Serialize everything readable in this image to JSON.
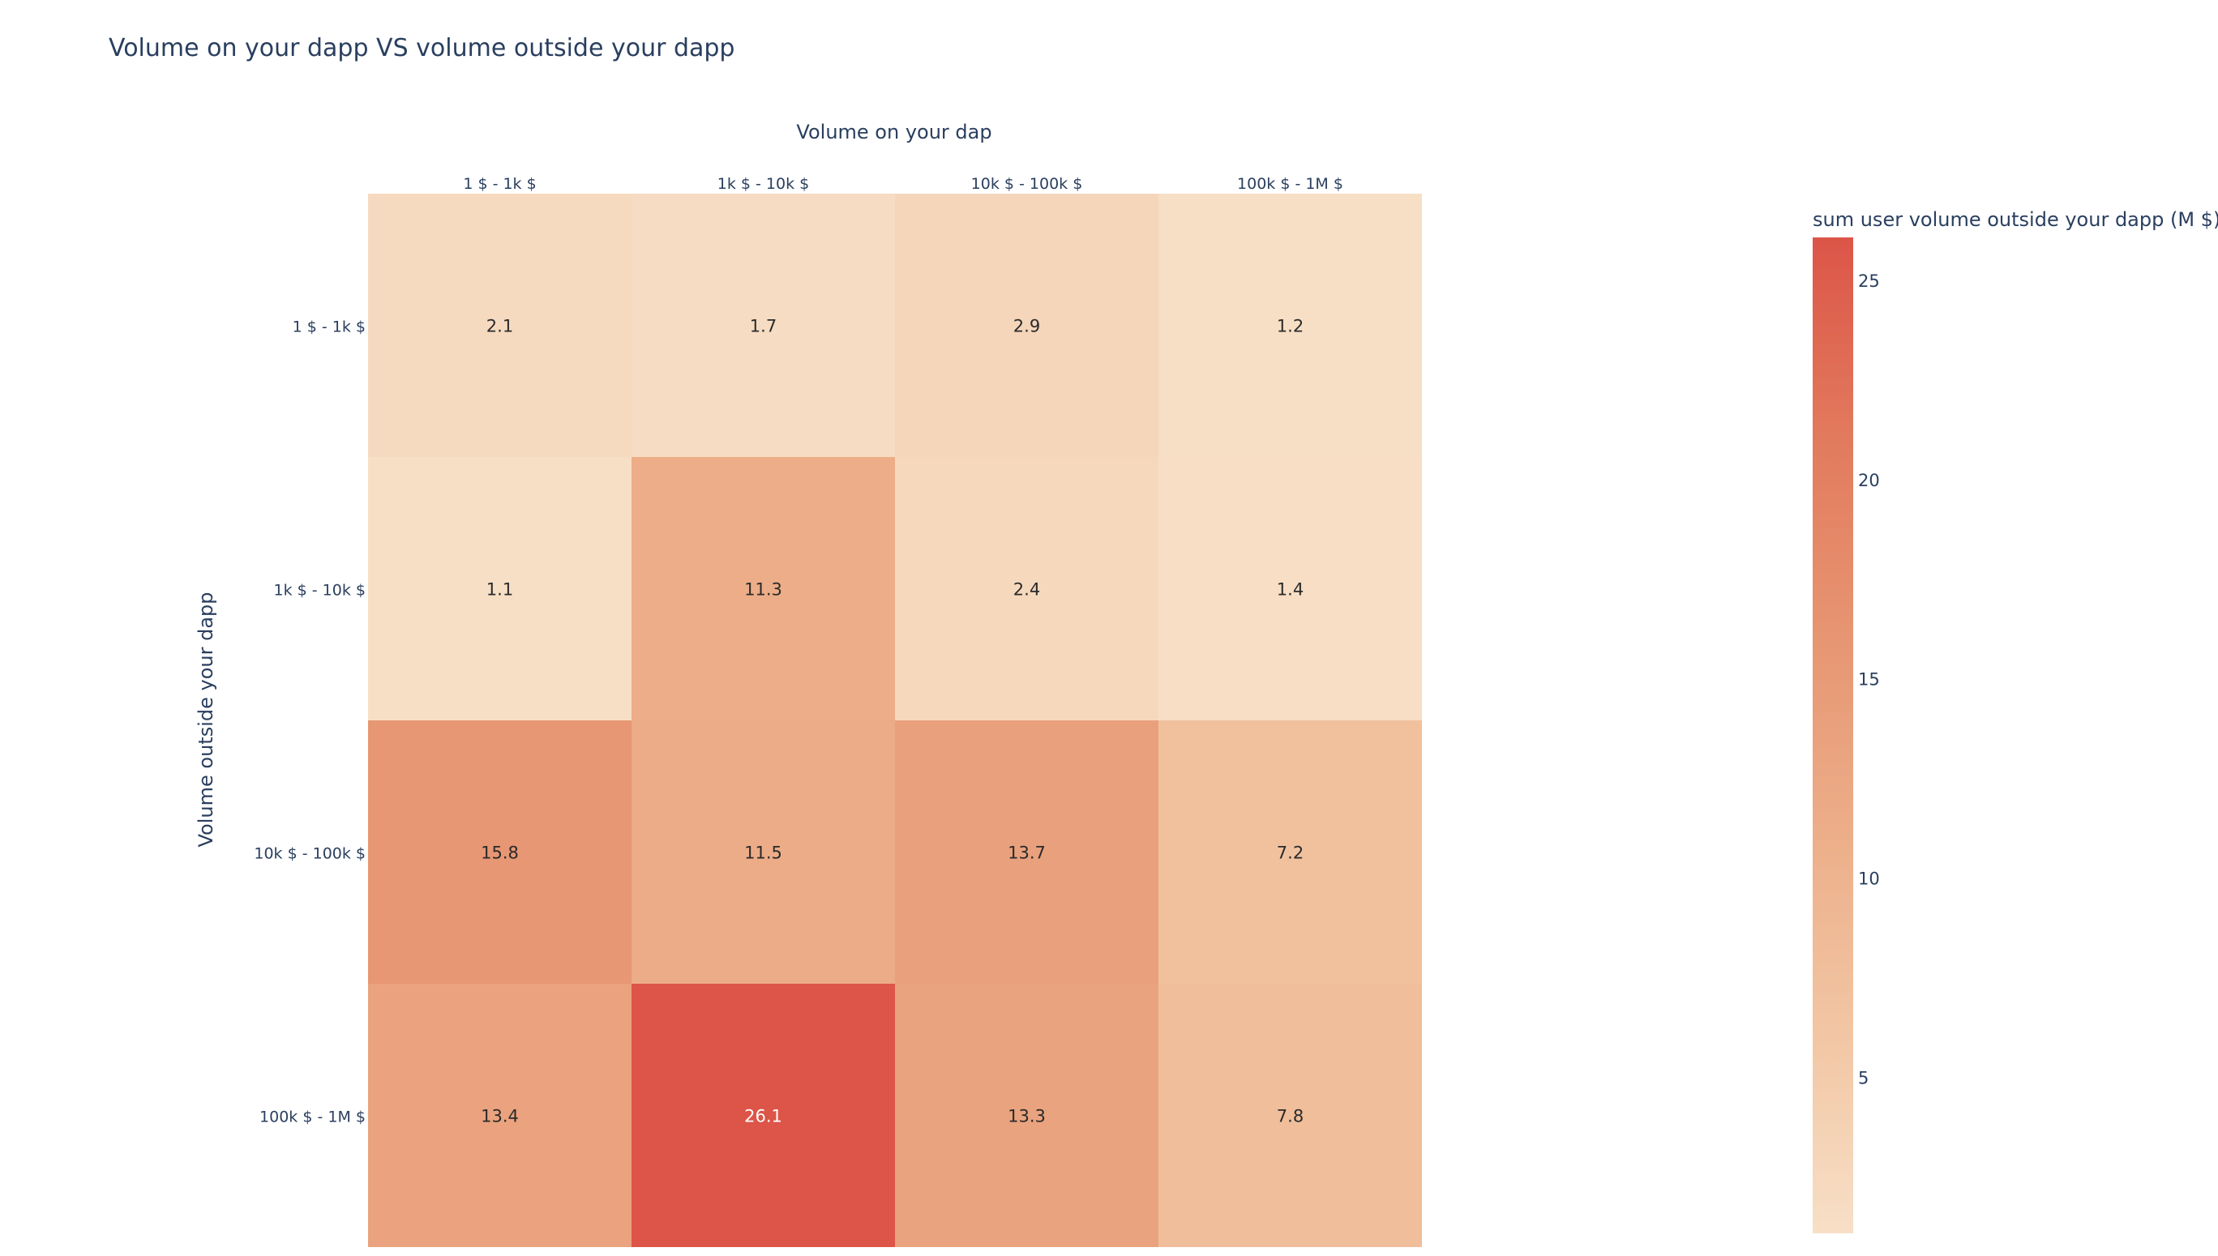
{
  "chart_data": {
    "type": "heatmap",
    "title": "Volume on your dapp VS volume outside your dapp",
    "xlabel": "Volume on your dap",
    "ylabel": "Volume outside your dapp",
    "x_categories": [
      "1 $ - 1k $",
      "1k $ - 10k $",
      "10k $ - 100k $",
      "100k $ - 1M $"
    ],
    "y_categories": [
      "1 $ - 1k $",
      "1k $ - 10k $",
      "10k $ - 100k $",
      "100k $ - 1M $"
    ],
    "z": [
      [
        2.1,
        1.7,
        2.9,
        1.2
      ],
      [
        1.1,
        11.3,
        2.4,
        1.4
      ],
      [
        15.8,
        11.5,
        13.7,
        7.2
      ],
      [
        13.4,
        26.1,
        13.3,
        7.8
      ]
    ],
    "colorbar": {
      "title": "sum user volume outside your dapp (M $)",
      "ticks": [
        5,
        10,
        15,
        20,
        25
      ],
      "range": [
        1.1,
        26.1
      ],
      "colors": [
        "#f7dfc6",
        "#dc5548"
      ]
    },
    "x_axis_position": "top"
  }
}
